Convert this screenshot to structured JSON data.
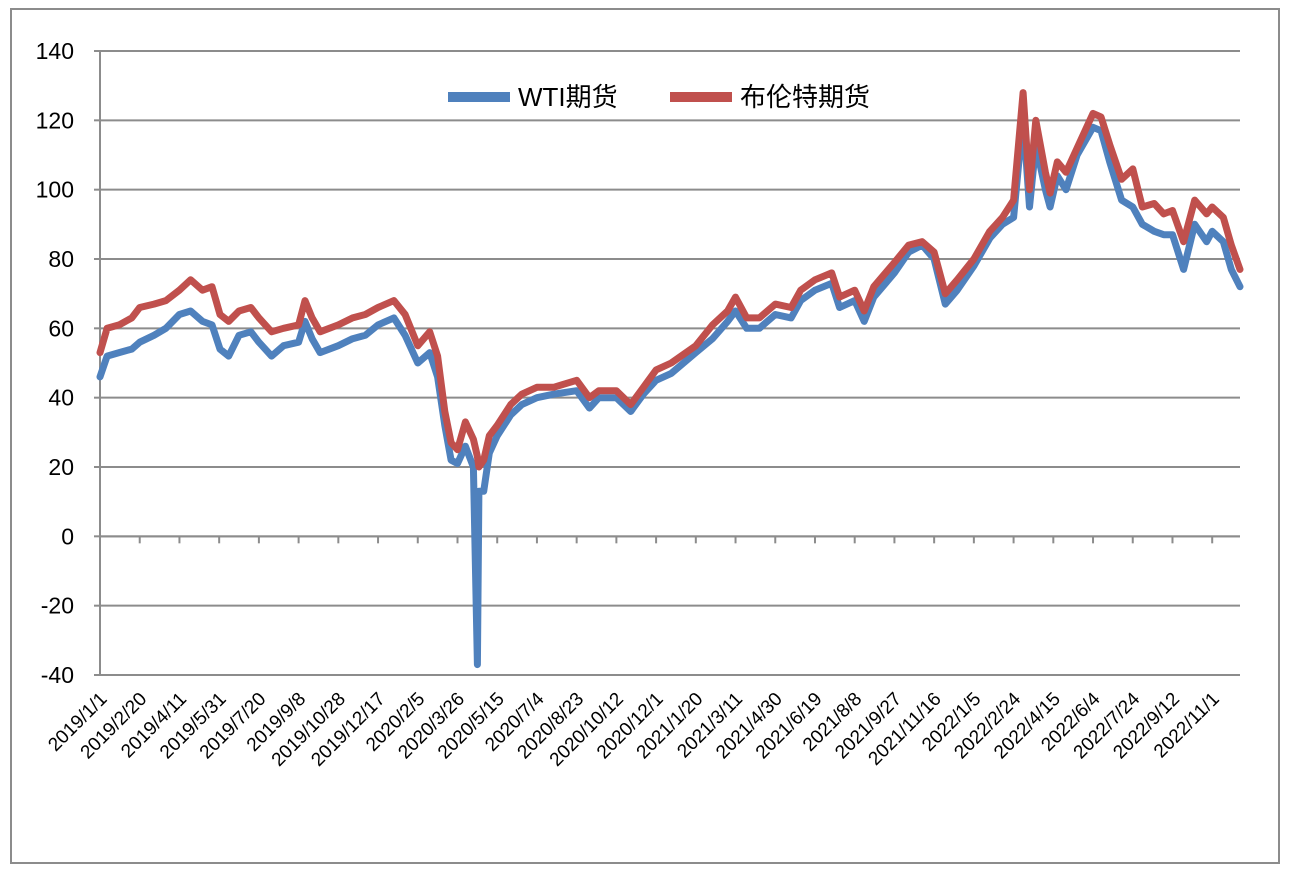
{
  "chart_data": {
    "type": "line",
    "title": "",
    "xlabel": "",
    "ylabel": "",
    "ylim": [
      -40,
      140
    ],
    "yticks": [
      -40,
      -20,
      0,
      20,
      40,
      60,
      80,
      100,
      120,
      140
    ],
    "grid": "horizontal",
    "legend_position": "top-center",
    "x_tick_labels": [
      "2019/1/1",
      "2019/2/20",
      "2019/4/11",
      "2019/5/31",
      "2019/7/20",
      "2019/9/8",
      "2019/10/28",
      "2019/12/17",
      "2020/2/5",
      "2020/3/26",
      "2020/5/15",
      "2020/7/4",
      "2020/8/23",
      "2020/10/12",
      "2020/12/1",
      "2021/1/20",
      "2021/3/11",
      "2021/4/30",
      "2021/6/19",
      "2021/8/8",
      "2021/9/27",
      "2021/11/16",
      "2022/1/5",
      "2022/2/24",
      "2022/4/15",
      "2022/6/4",
      "2022/7/24",
      "2022/9/12",
      "2022/11/1"
    ],
    "x_range": [
      "2019/1/1",
      "2022/12/6"
    ],
    "series": [
      {
        "name": "WTI期货",
        "color": "#4f81bd",
        "points": [
          [
            "2019/1/1",
            46
          ],
          [
            "2019/1/10",
            52
          ],
          [
            "2019/1/25",
            53
          ],
          [
            "2019/2/10",
            54
          ],
          [
            "2019/2/20",
            56
          ],
          [
            "2019/3/10",
            58
          ],
          [
            "2019/3/25",
            60
          ],
          [
            "2019/4/11",
            64
          ],
          [
            "2019/4/25",
            65
          ],
          [
            "2019/5/10",
            62
          ],
          [
            "2019/5/22",
            61
          ],
          [
            "2019/6/1",
            54
          ],
          [
            "2019/6/12",
            52
          ],
          [
            "2019/6/25",
            58
          ],
          [
            "2019/7/10",
            59
          ],
          [
            "2019/7/20",
            56
          ],
          [
            "2019/8/5",
            52
          ],
          [
            "2019/8/20",
            55
          ],
          [
            "2019/9/8",
            56
          ],
          [
            "2019/9/16",
            62
          ],
          [
            "2019/9/25",
            57
          ],
          [
            "2019/10/5",
            53
          ],
          [
            "2019/10/28",
            55
          ],
          [
            "2019/11/15",
            57
          ],
          [
            "2019/12/1",
            58
          ],
          [
            "2019/12/17",
            61
          ],
          [
            "2020/1/6",
            63
          ],
          [
            "2020/1/20",
            58
          ],
          [
            "2020/2/5",
            50
          ],
          [
            "2020/2/20",
            53
          ],
          [
            "2020/3/1",
            46
          ],
          [
            "2020/3/10",
            32
          ],
          [
            "2020/3/18",
            22
          ],
          [
            "2020/3/26",
            21
          ],
          [
            "2020/4/5",
            26
          ],
          [
            "2020/4/15",
            20
          ],
          [
            "2020/4/20",
            -37
          ],
          [
            "2020/4/22",
            13
          ],
          [
            "2020/4/28",
            13
          ],
          [
            "2020/5/5",
            24
          ],
          [
            "2020/5/15",
            29
          ],
          [
            "2020/6/1",
            35
          ],
          [
            "2020/6/15",
            38
          ],
          [
            "2020/7/4",
            40
          ],
          [
            "2020/7/25",
            41
          ],
          [
            "2020/8/23",
            42
          ],
          [
            "2020/9/8",
            37
          ],
          [
            "2020/9/20",
            40
          ],
          [
            "2020/10/12",
            40
          ],
          [
            "2020/10/30",
            36
          ],
          [
            "2020/11/15",
            41
          ],
          [
            "2020/12/1",
            45
          ],
          [
            "2020/12/20",
            47
          ],
          [
            "2021/1/20",
            53
          ],
          [
            "2021/2/10",
            57
          ],
          [
            "2021/3/1",
            62
          ],
          [
            "2021/3/11",
            65
          ],
          [
            "2021/3/25",
            60
          ],
          [
            "2021/4/10",
            60
          ],
          [
            "2021/4/30",
            64
          ],
          [
            "2021/5/20",
            63
          ],
          [
            "2021/6/1",
            68
          ],
          [
            "2021/6/19",
            71
          ],
          [
            "2021/7/10",
            73
          ],
          [
            "2021/7/20",
            66
          ],
          [
            "2021/8/8",
            68
          ],
          [
            "2021/8/20",
            62
          ],
          [
            "2021/9/1",
            69
          ],
          [
            "2021/9/27",
            76
          ],
          [
            "2021/10/15",
            82
          ],
          [
            "2021/11/1",
            84
          ],
          [
            "2021/11/16",
            80
          ],
          [
            "2021/11/30",
            67
          ],
          [
            "2021/12/15",
            71
          ],
          [
            "2022/1/5",
            78
          ],
          [
            "2022/1/25",
            86
          ],
          [
            "2022/2/10",
            90
          ],
          [
            "2022/2/24",
            92
          ],
          [
            "2022/3/8",
            121
          ],
          [
            "2022/3/16",
            95
          ],
          [
            "2022/3/24",
            113
          ],
          [
            "2022/4/5",
            100
          ],
          [
            "2022/4/11",
            95
          ],
          [
            "2022/4/20",
            104
          ],
          [
            "2022/5/1",
            100
          ],
          [
            "2022/5/15",
            110
          ],
          [
            "2022/6/4",
            118
          ],
          [
            "2022/6/14",
            117
          ],
          [
            "2022/6/25",
            108
          ],
          [
            "2022/7/10",
            97
          ],
          [
            "2022/7/24",
            95
          ],
          [
            "2022/8/5",
            90
          ],
          [
            "2022/8/20",
            88
          ],
          [
            "2022/9/1",
            87
          ],
          [
            "2022/9/12",
            87
          ],
          [
            "2022/9/26",
            77
          ],
          [
            "2022/10/10",
            90
          ],
          [
            "2022/10/25",
            85
          ],
          [
            "2022/11/1",
            88
          ],
          [
            "2022/11/15",
            85
          ],
          [
            "2022/11/25",
            77
          ],
          [
            "2022/12/6",
            72
          ]
        ]
      },
      {
        "name": "布伦特期货",
        "color": "#c0504d",
        "points": [
          [
            "2019/1/1",
            53
          ],
          [
            "2019/1/10",
            60
          ],
          [
            "2019/1/25",
            61
          ],
          [
            "2019/2/10",
            63
          ],
          [
            "2019/2/20",
            66
          ],
          [
            "2019/3/10",
            67
          ],
          [
            "2019/3/25",
            68
          ],
          [
            "2019/4/11",
            71
          ],
          [
            "2019/4/25",
            74
          ],
          [
            "2019/5/10",
            71
          ],
          [
            "2019/5/22",
            72
          ],
          [
            "2019/6/1",
            64
          ],
          [
            "2019/6/12",
            62
          ],
          [
            "2019/6/25",
            65
          ],
          [
            "2019/7/10",
            66
          ],
          [
            "2019/7/20",
            63
          ],
          [
            "2019/8/5",
            59
          ],
          [
            "2019/8/20",
            60
          ],
          [
            "2019/9/8",
            61
          ],
          [
            "2019/9/16",
            68
          ],
          [
            "2019/9/25",
            63
          ],
          [
            "2019/10/5",
            59
          ],
          [
            "2019/10/28",
            61
          ],
          [
            "2019/11/15",
            63
          ],
          [
            "2019/12/1",
            64
          ],
          [
            "2019/12/17",
            66
          ],
          [
            "2020/1/6",
            68
          ],
          [
            "2020/1/20",
            64
          ],
          [
            "2020/2/5",
            55
          ],
          [
            "2020/2/20",
            59
          ],
          [
            "2020/3/1",
            52
          ],
          [
            "2020/3/10",
            36
          ],
          [
            "2020/3/18",
            27
          ],
          [
            "2020/3/26",
            25
          ],
          [
            "2020/4/5",
            33
          ],
          [
            "2020/4/15",
            28
          ],
          [
            "2020/4/20",
            23
          ],
          [
            "2020/4/22",
            20
          ],
          [
            "2020/4/28",
            22
          ],
          [
            "2020/5/5",
            29
          ],
          [
            "2020/5/15",
            32
          ],
          [
            "2020/6/1",
            38
          ],
          [
            "2020/6/15",
            41
          ],
          [
            "2020/7/4",
            43
          ],
          [
            "2020/7/25",
            43
          ],
          [
            "2020/8/23",
            45
          ],
          [
            "2020/9/8",
            40
          ],
          [
            "2020/9/20",
            42
          ],
          [
            "2020/10/12",
            42
          ],
          [
            "2020/10/30",
            38
          ],
          [
            "2020/11/15",
            43
          ],
          [
            "2020/12/1",
            48
          ],
          [
            "2020/12/20",
            50
          ],
          [
            "2021/1/20",
            55
          ],
          [
            "2021/2/10",
            61
          ],
          [
            "2021/3/1",
            65
          ],
          [
            "2021/3/11",
            69
          ],
          [
            "2021/3/25",
            63
          ],
          [
            "2021/4/10",
            63
          ],
          [
            "2021/4/30",
            67
          ],
          [
            "2021/5/20",
            66
          ],
          [
            "2021/6/1",
            71
          ],
          [
            "2021/6/19",
            74
          ],
          [
            "2021/7/10",
            76
          ],
          [
            "2021/7/20",
            69
          ],
          [
            "2021/8/8",
            71
          ],
          [
            "2021/8/20",
            65
          ],
          [
            "2021/9/1",
            72
          ],
          [
            "2021/9/27",
            79
          ],
          [
            "2021/10/15",
            84
          ],
          [
            "2021/11/1",
            85
          ],
          [
            "2021/11/16",
            82
          ],
          [
            "2021/11/30",
            70
          ],
          [
            "2021/12/15",
            74
          ],
          [
            "2022/1/5",
            80
          ],
          [
            "2022/1/25",
            88
          ],
          [
            "2022/2/10",
            92
          ],
          [
            "2022/2/24",
            97
          ],
          [
            "2022/3/8",
            128
          ],
          [
            "2022/3/16",
            100
          ],
          [
            "2022/3/24",
            120
          ],
          [
            "2022/4/5",
            105
          ],
          [
            "2022/4/11",
            99
          ],
          [
            "2022/4/20",
            108
          ],
          [
            "2022/5/1",
            105
          ],
          [
            "2022/5/15",
            112
          ],
          [
            "2022/6/4",
            122
          ],
          [
            "2022/6/14",
            121
          ],
          [
            "2022/6/25",
            113
          ],
          [
            "2022/7/10",
            103
          ],
          [
            "2022/7/24",
            106
          ],
          [
            "2022/8/5",
            95
          ],
          [
            "2022/8/20",
            96
          ],
          [
            "2022/9/1",
            93
          ],
          [
            "2022/9/12",
            94
          ],
          [
            "2022/9/26",
            85
          ],
          [
            "2022/10/10",
            97
          ],
          [
            "2022/10/25",
            93
          ],
          [
            "2022/11/1",
            95
          ],
          [
            "2022/11/15",
            92
          ],
          [
            "2022/11/25",
            84
          ],
          [
            "2022/12/6",
            77
          ]
        ]
      }
    ]
  }
}
